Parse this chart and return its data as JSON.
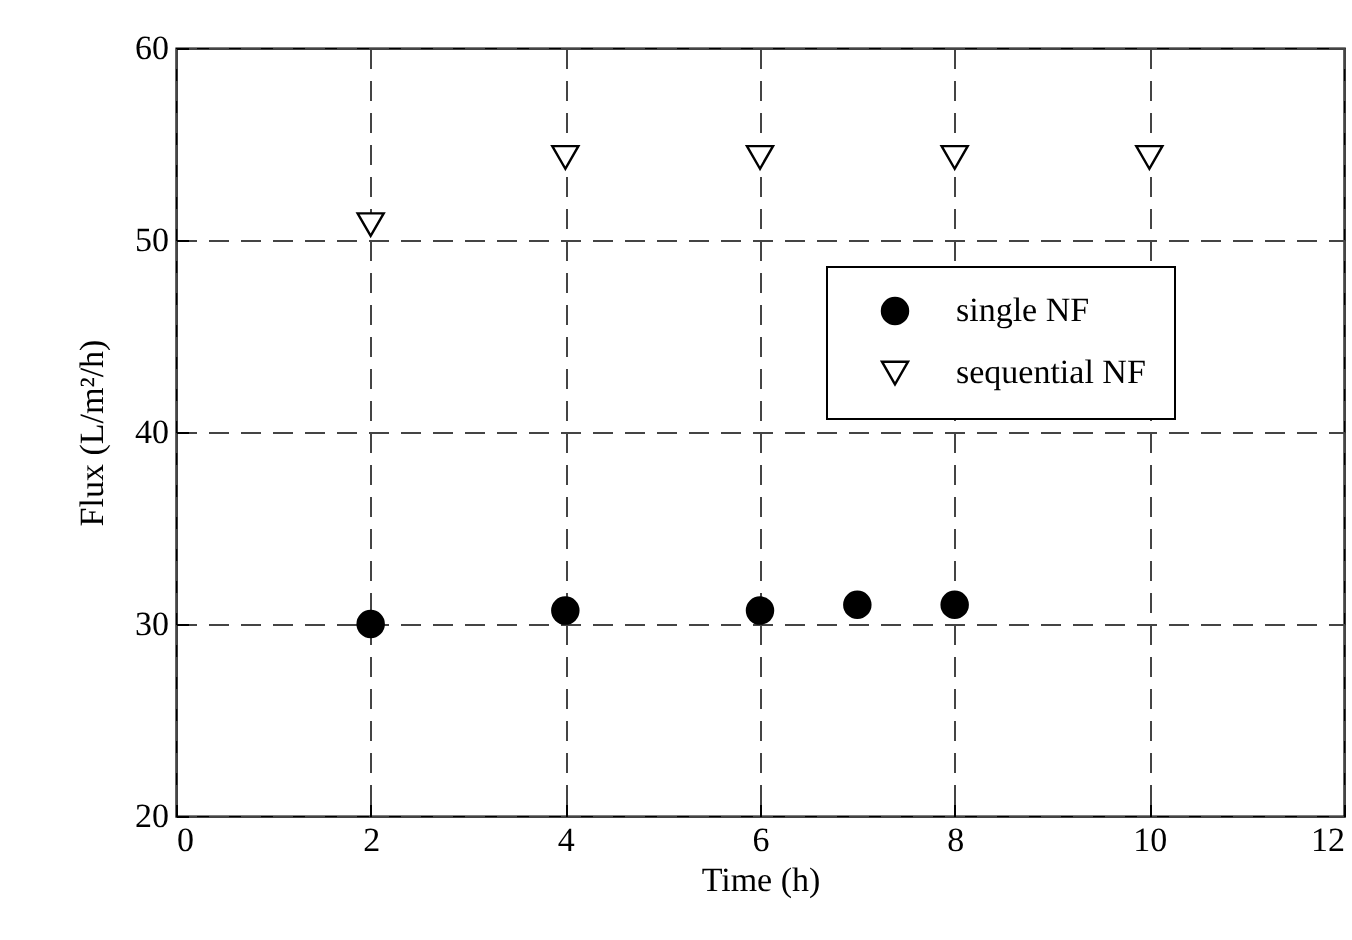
{
  "chart_data": {
    "type": "scatter",
    "xlabel": "Time (h)",
    "ylabel": "Flux (L/m²/h)",
    "xlim": [
      0,
      12
    ],
    "xticks": [
      0,
      2,
      4,
      6,
      8,
      10,
      12
    ],
    "ylim": [
      20,
      60
    ],
    "yticks": [
      20,
      30,
      40,
      50,
      60
    ],
    "grid": true,
    "legend": "top right",
    "series": [
      {
        "name": "single NF",
        "color": "#000000",
        "marker": "circle",
        "x": [
          2,
          4,
          6,
          7,
          8
        ],
        "values": [
          30.0,
          30.7,
          30.7,
          31.0,
          31.0
        ]
      },
      {
        "name": "sequential NF",
        "color": "#000000",
        "marker": "triangle",
        "x": [
          2,
          4,
          6,
          8,
          10
        ],
        "values": [
          50.8,
          54.3,
          54.3,
          54.3,
          54.3
        ]
      }
    ]
  }
}
